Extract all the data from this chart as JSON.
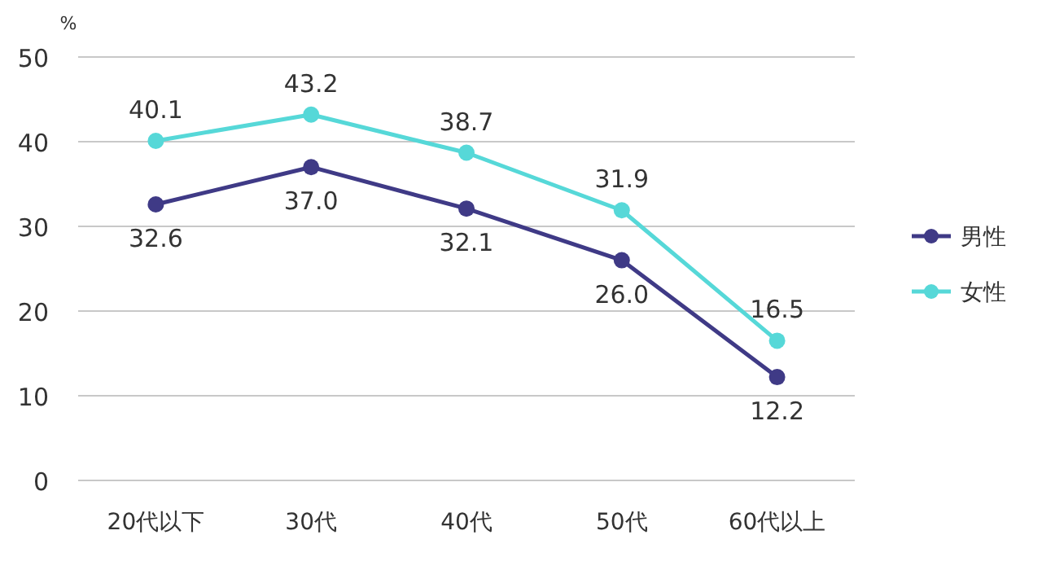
{
  "chart_data": {
    "type": "line",
    "ylabel": "%",
    "categories": [
      "20代以下",
      "30代",
      "40代",
      "50代",
      "60代以上"
    ],
    "series": [
      {
        "name": "男性",
        "color": "#3f3a86",
        "values": [
          32.6,
          37.0,
          32.1,
          26.0,
          12.2
        ],
        "value_labels": [
          "32.6",
          "37.0",
          "32.1",
          "26.0",
          "12.2"
        ]
      },
      {
        "name": "女性",
        "color": "#56d8d8",
        "values": [
          40.1,
          43.2,
          38.7,
          31.9,
          16.5
        ],
        "value_labels": [
          "40.1",
          "43.2",
          "38.7",
          "31.9",
          "16.5"
        ]
      }
    ],
    "ylim": [
      0,
      50
    ],
    "yticks": [
      0,
      10,
      20,
      30,
      40,
      50
    ],
    "grid": "y",
    "legend": "right",
    "marker": "circle"
  }
}
